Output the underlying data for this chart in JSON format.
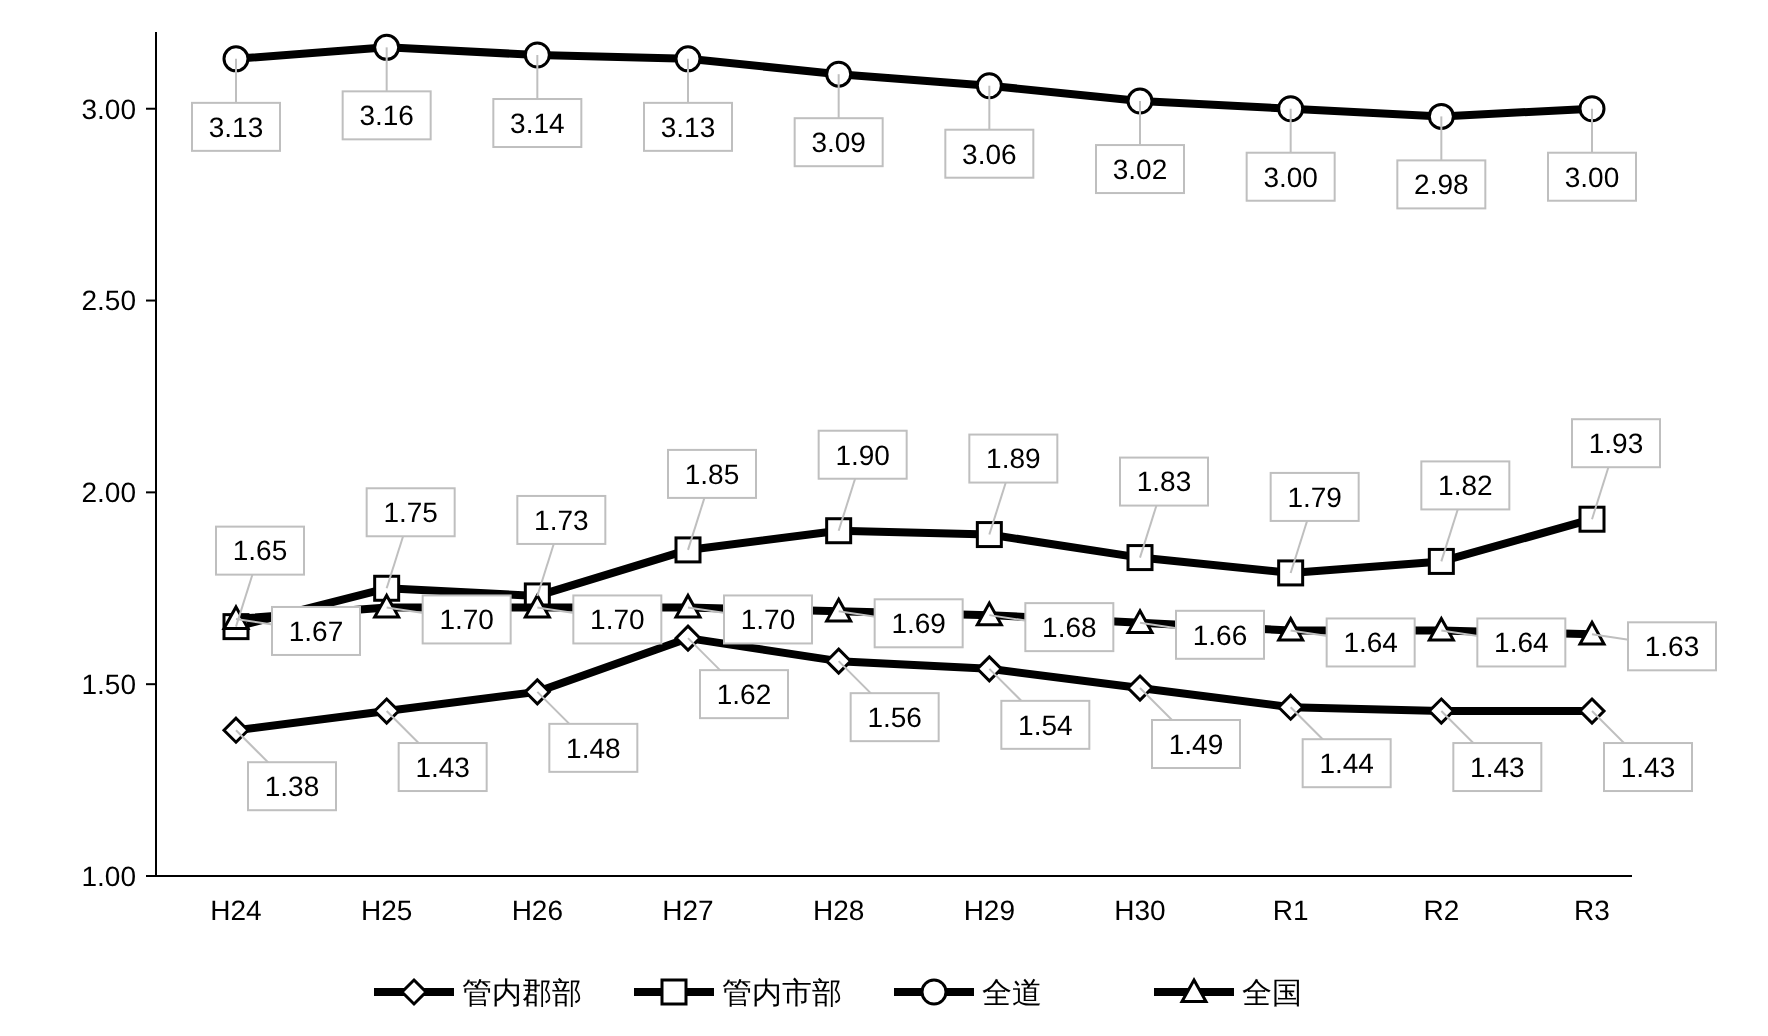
{
  "chart_data": {
    "type": "line",
    "categories": [
      "H24",
      "H25",
      "H26",
      "H27",
      "H28",
      "H29",
      "H30",
      "R1",
      "R2",
      "R3"
    ],
    "ylim": [
      1,
      3.2
    ],
    "yticks": [
      {
        "value": 1,
        "label": "1.00"
      },
      {
        "value": 1.5,
        "label": "1.50"
      },
      {
        "value": 2,
        "label": "2.00"
      },
      {
        "value": 2.5,
        "label": "2.50"
      },
      {
        "value": 3,
        "label": "3.00"
      }
    ],
    "grid": false,
    "legend": "bottom",
    "line_style": "solid",
    "series": [
      {
        "name": "管内郡部",
        "color": "#000000",
        "marker": "diamond",
        "values": [
          1.38,
          1.43,
          1.48,
          1.62,
          1.56,
          1.54,
          1.49,
          1.44,
          1.43,
          1.43
        ],
        "value_labels": [
          "1.38",
          "1.43",
          "1.48",
          "1.62",
          "1.56",
          "1.54",
          "1.49",
          "1.44",
          "1.43",
          "1.43"
        ]
      },
      {
        "name": "管内市部",
        "color": "#000000",
        "marker": "square",
        "values": [
          1.65,
          1.75,
          1.73,
          1.85,
          1.9,
          1.89,
          1.83,
          1.79,
          1.82,
          1.93
        ],
        "value_labels": [
          "1.65",
          "1.75",
          "1.73",
          "1.85",
          "1.90",
          "1.89",
          "1.83",
          "1.79",
          "1.82",
          "1.93"
        ]
      },
      {
        "name": "全道",
        "color": "#000000",
        "marker": "circle",
        "values": [
          3.13,
          3.16,
          3.14,
          3.13,
          3.09,
          3.06,
          3.02,
          3.0,
          2.98,
          3.0
        ],
        "value_labels": [
          "3.13",
          "3.16",
          "3.14",
          "3.13",
          "3.09",
          "3.06",
          "3.02",
          "3.00",
          "2.98",
          "3.00"
        ]
      },
      {
        "name": "全国",
        "color": "#000000",
        "marker": "triangle",
        "values": [
          1.67,
          1.7,
          1.7,
          1.7,
          1.69,
          1.68,
          1.66,
          1.64,
          1.64,
          1.63
        ],
        "value_labels": [
          "1.67",
          "1.70",
          "1.70",
          "1.70",
          "1.69",
          "1.68",
          "1.66",
          "1.64",
          "1.64",
          "1.63"
        ]
      }
    ]
  }
}
